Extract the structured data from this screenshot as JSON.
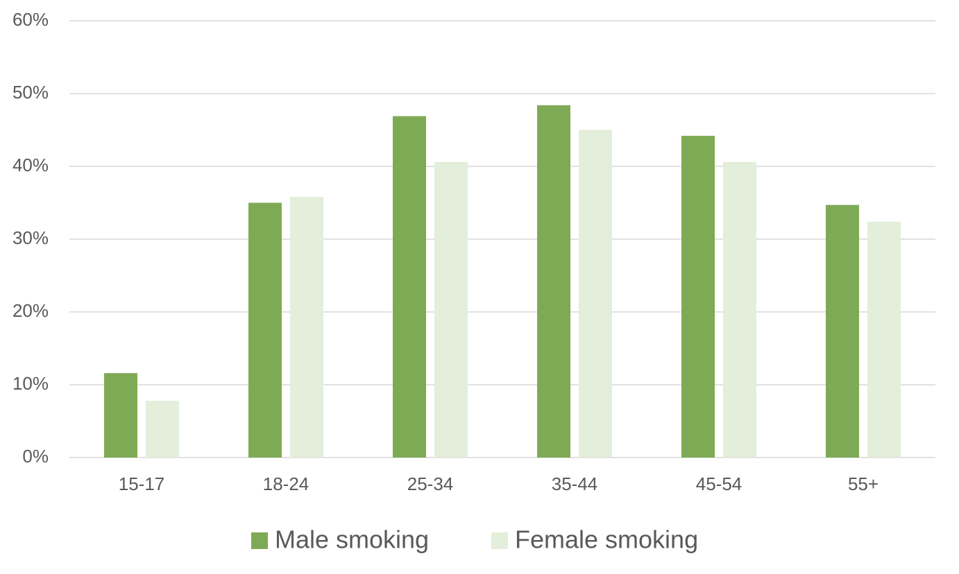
{
  "chart_data": {
    "type": "bar",
    "categories": [
      "15-17",
      "18-24",
      "25-34",
      "35-44",
      "45-54",
      "55+"
    ],
    "series": [
      {
        "name": "Male smoking",
        "color": "#7faa55",
        "values": [
          11.6,
          35.0,
          46.9,
          48.4,
          44.2,
          34.7
        ]
      },
      {
        "name": "Female smoking",
        "color": "#e3eedb",
        "values": [
          7.8,
          35.8,
          40.6,
          45.0,
          40.6,
          32.4
        ]
      }
    ],
    "ylim": [
      0,
      60
    ],
    "yticks": [
      {
        "value": 0,
        "label": "0%"
      },
      {
        "value": 10,
        "label": "10%"
      },
      {
        "value": 20,
        "label": "20%"
      },
      {
        "value": 30,
        "label": "30%"
      },
      {
        "value": 40,
        "label": "40%"
      },
      {
        "value": 50,
        "label": "50%"
      },
      {
        "value": 60,
        "label": "60%"
      }
    ],
    "grid": true,
    "legend": "bottom"
  }
}
